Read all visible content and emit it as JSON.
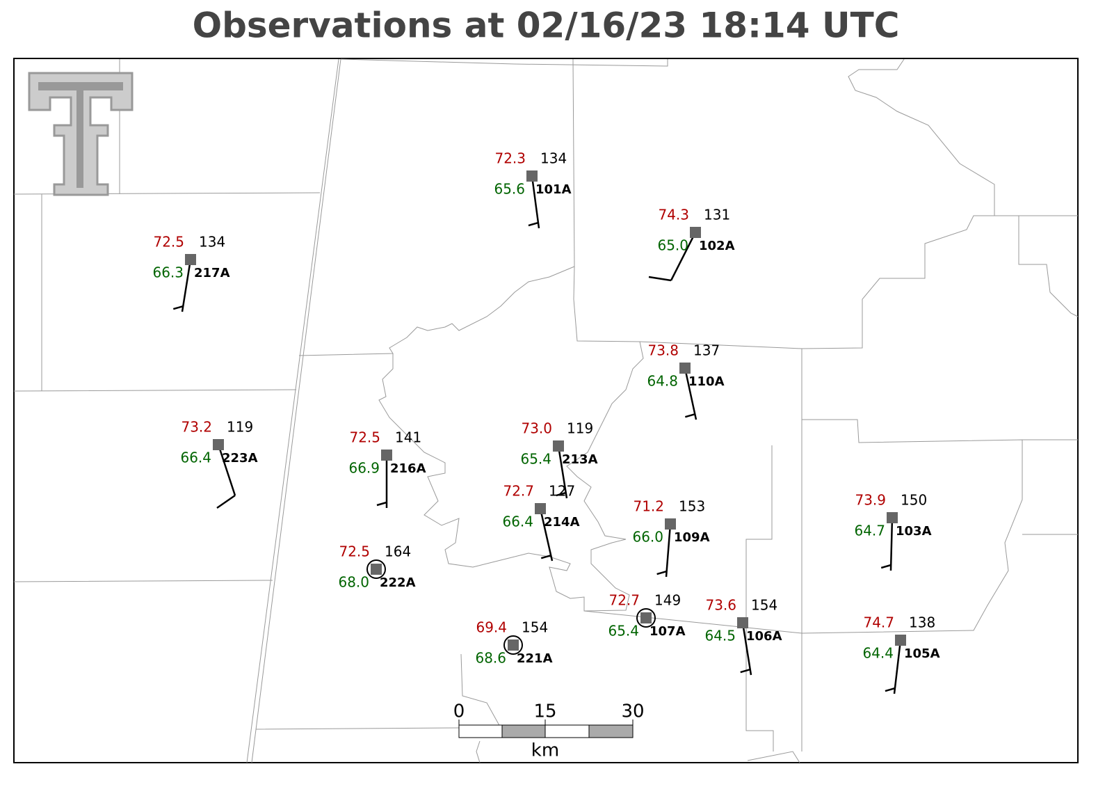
{
  "title": "Observations at 02/16/23 18:14 UTC",
  "stations": [
    {
      "id": "101A",
      "temperature": "72.3",
      "dewpoint": "65.6",
      "pressure": "134"
    },
    {
      "id": "102A",
      "temperature": "74.3",
      "dewpoint": "65.0",
      "pressure": "131"
    },
    {
      "id": "217A",
      "temperature": "72.5",
      "dewpoint": "66.3",
      "pressure": "134"
    },
    {
      "id": "110A",
      "temperature": "73.8",
      "dewpoint": "64.8",
      "pressure": "137"
    },
    {
      "id": "223A",
      "temperature": "73.2",
      "dewpoint": "66.4",
      "pressure": "119"
    },
    {
      "id": "216A",
      "temperature": "72.5",
      "dewpoint": "66.9",
      "pressure": "141"
    },
    {
      "id": "213A",
      "temperature": "73.0",
      "dewpoint": "65.4",
      "pressure": "119"
    },
    {
      "id": "214A",
      "temperature": "72.7",
      "dewpoint": "66.4",
      "pressure": "127"
    },
    {
      "id": "109A",
      "temperature": "71.2",
      "dewpoint": "66.0",
      "pressure": "153"
    },
    {
      "id": "222A",
      "temperature": "72.5",
      "dewpoint": "68.0",
      "pressure": "164"
    },
    {
      "id": "107A",
      "temperature": "72.7",
      "dewpoint": "65.4",
      "pressure": "149"
    },
    {
      "id": "221A",
      "temperature": "69.4",
      "dewpoint": "68.6",
      "pressure": "154"
    },
    {
      "id": "106A",
      "temperature": "73.6",
      "dewpoint": "64.5",
      "pressure": "154"
    },
    {
      "id": "103A",
      "temperature": "73.9",
      "dewpoint": "64.7",
      "pressure": "150"
    },
    {
      "id": "105A",
      "temperature": "74.7",
      "dewpoint": "64.4",
      "pressure": "138"
    }
  ],
  "scale_bar": {
    "labels": [
      "0",
      "15",
      "30"
    ],
    "unit": "km"
  }
}
